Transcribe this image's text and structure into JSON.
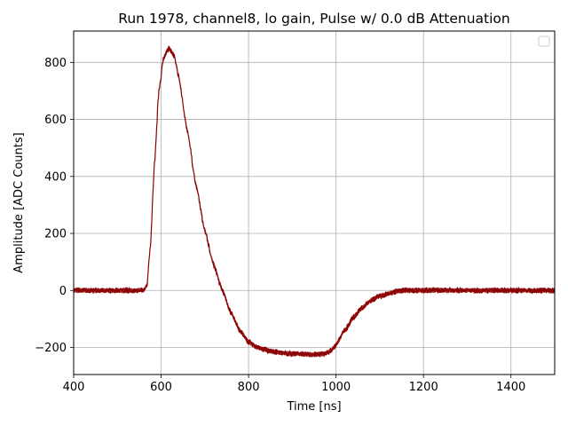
{
  "chart_data": {
    "type": "line",
    "title": "Run 1978, channel8, lo gain, Pulse w/ 0.0 dB Attenuation",
    "xlabel": "Time [ns]",
    "ylabel": "Amplitude [ADC Counts]",
    "xlim": [
      400,
      1500
    ],
    "ylim": [
      -295,
      910
    ],
    "xticks": [
      400,
      600,
      800,
      1000,
      1200,
      1400
    ],
    "xtick_labels": [
      "400",
      "600",
      "800",
      "1000",
      "1200",
      "1400"
    ],
    "yticks": [
      -200,
      0,
      200,
      400,
      600,
      800
    ],
    "ytick_labels": [
      "−200",
      "0",
      "200",
      "400",
      "600",
      "800"
    ],
    "grid": true,
    "legend": "top-right (empty)",
    "noise_band": 10,
    "series": [
      {
        "color": "#8b0000",
        "x": [
          400,
          560,
          568,
          575,
          585,
          595,
          605,
          615,
          620,
          630,
          640,
          660,
          680,
          700,
          720,
          740,
          760,
          780,
          800,
          820,
          840,
          860,
          880,
          900,
          920,
          940,
          960,
          975,
          990,
          1000,
          1020,
          1040,
          1060,
          1080,
          1100,
          1120,
          1140,
          1160,
          1180,
          1200,
          1250,
          1300,
          1400,
          1500
        ],
        "y": [
          0,
          0,
          20,
          150,
          450,
          700,
          810,
          845,
          848,
          820,
          750,
          560,
          370,
          210,
          90,
          0,
          -80,
          -140,
          -180,
          -200,
          -210,
          -217,
          -220,
          -222,
          -223,
          -224,
          -224,
          -222,
          -210,
          -190,
          -140,
          -95,
          -60,
          -35,
          -20,
          -10,
          -4,
          0,
          0,
          0,
          0,
          0,
          0,
          0
        ]
      }
    ]
  }
}
